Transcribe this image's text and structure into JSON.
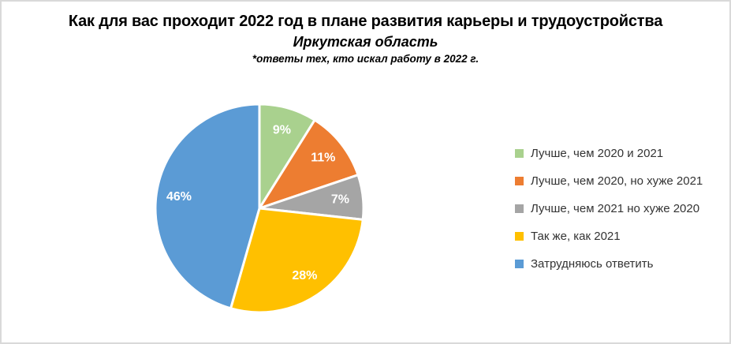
{
  "frame": {
    "background": "#ffffff",
    "border_color": "#d9d9d9"
  },
  "header": {
    "title": "Как для вас проходит 2022 год в плане развития карьеры и трудоустройства",
    "subtitle": "Иркутская область",
    "note": "*ответы тех, кто искал работу в 2022 г."
  },
  "chart_data": {
    "type": "pie",
    "title": "Как для вас проходит 2022 год в плане развития карьеры и трудоустройства",
    "subtitle": "Иркутская область",
    "note": "*ответы тех, кто искал работу в 2022 г.",
    "start_angle_deg": 0,
    "direction": "clockwise",
    "legend_position": "right",
    "data_label_color": "#ffffff",
    "slice_border_color": "#ffffff",
    "slices": [
      {
        "label": "Лучше, чем 2020 и 2021",
        "value_pct": 9,
        "display": "9%",
        "color": "#A9D18E"
      },
      {
        "label": "Лучше, чем 2020, но хуже 2021",
        "value_pct": 11,
        "display": "11%",
        "color": "#ED7D31"
      },
      {
        "label": "Лучше, чем 2021 но хуже 2020",
        "value_pct": 7,
        "display": "7%",
        "color": "#A5A5A5"
      },
      {
        "label": "Так же, как 2021",
        "value_pct": 28,
        "display": "28%",
        "color": "#FFC000"
      },
      {
        "label": "Затрудняюсь ответить",
        "value_pct": 46,
        "display": "46%",
        "color": "#5B9BD5"
      }
    ]
  }
}
